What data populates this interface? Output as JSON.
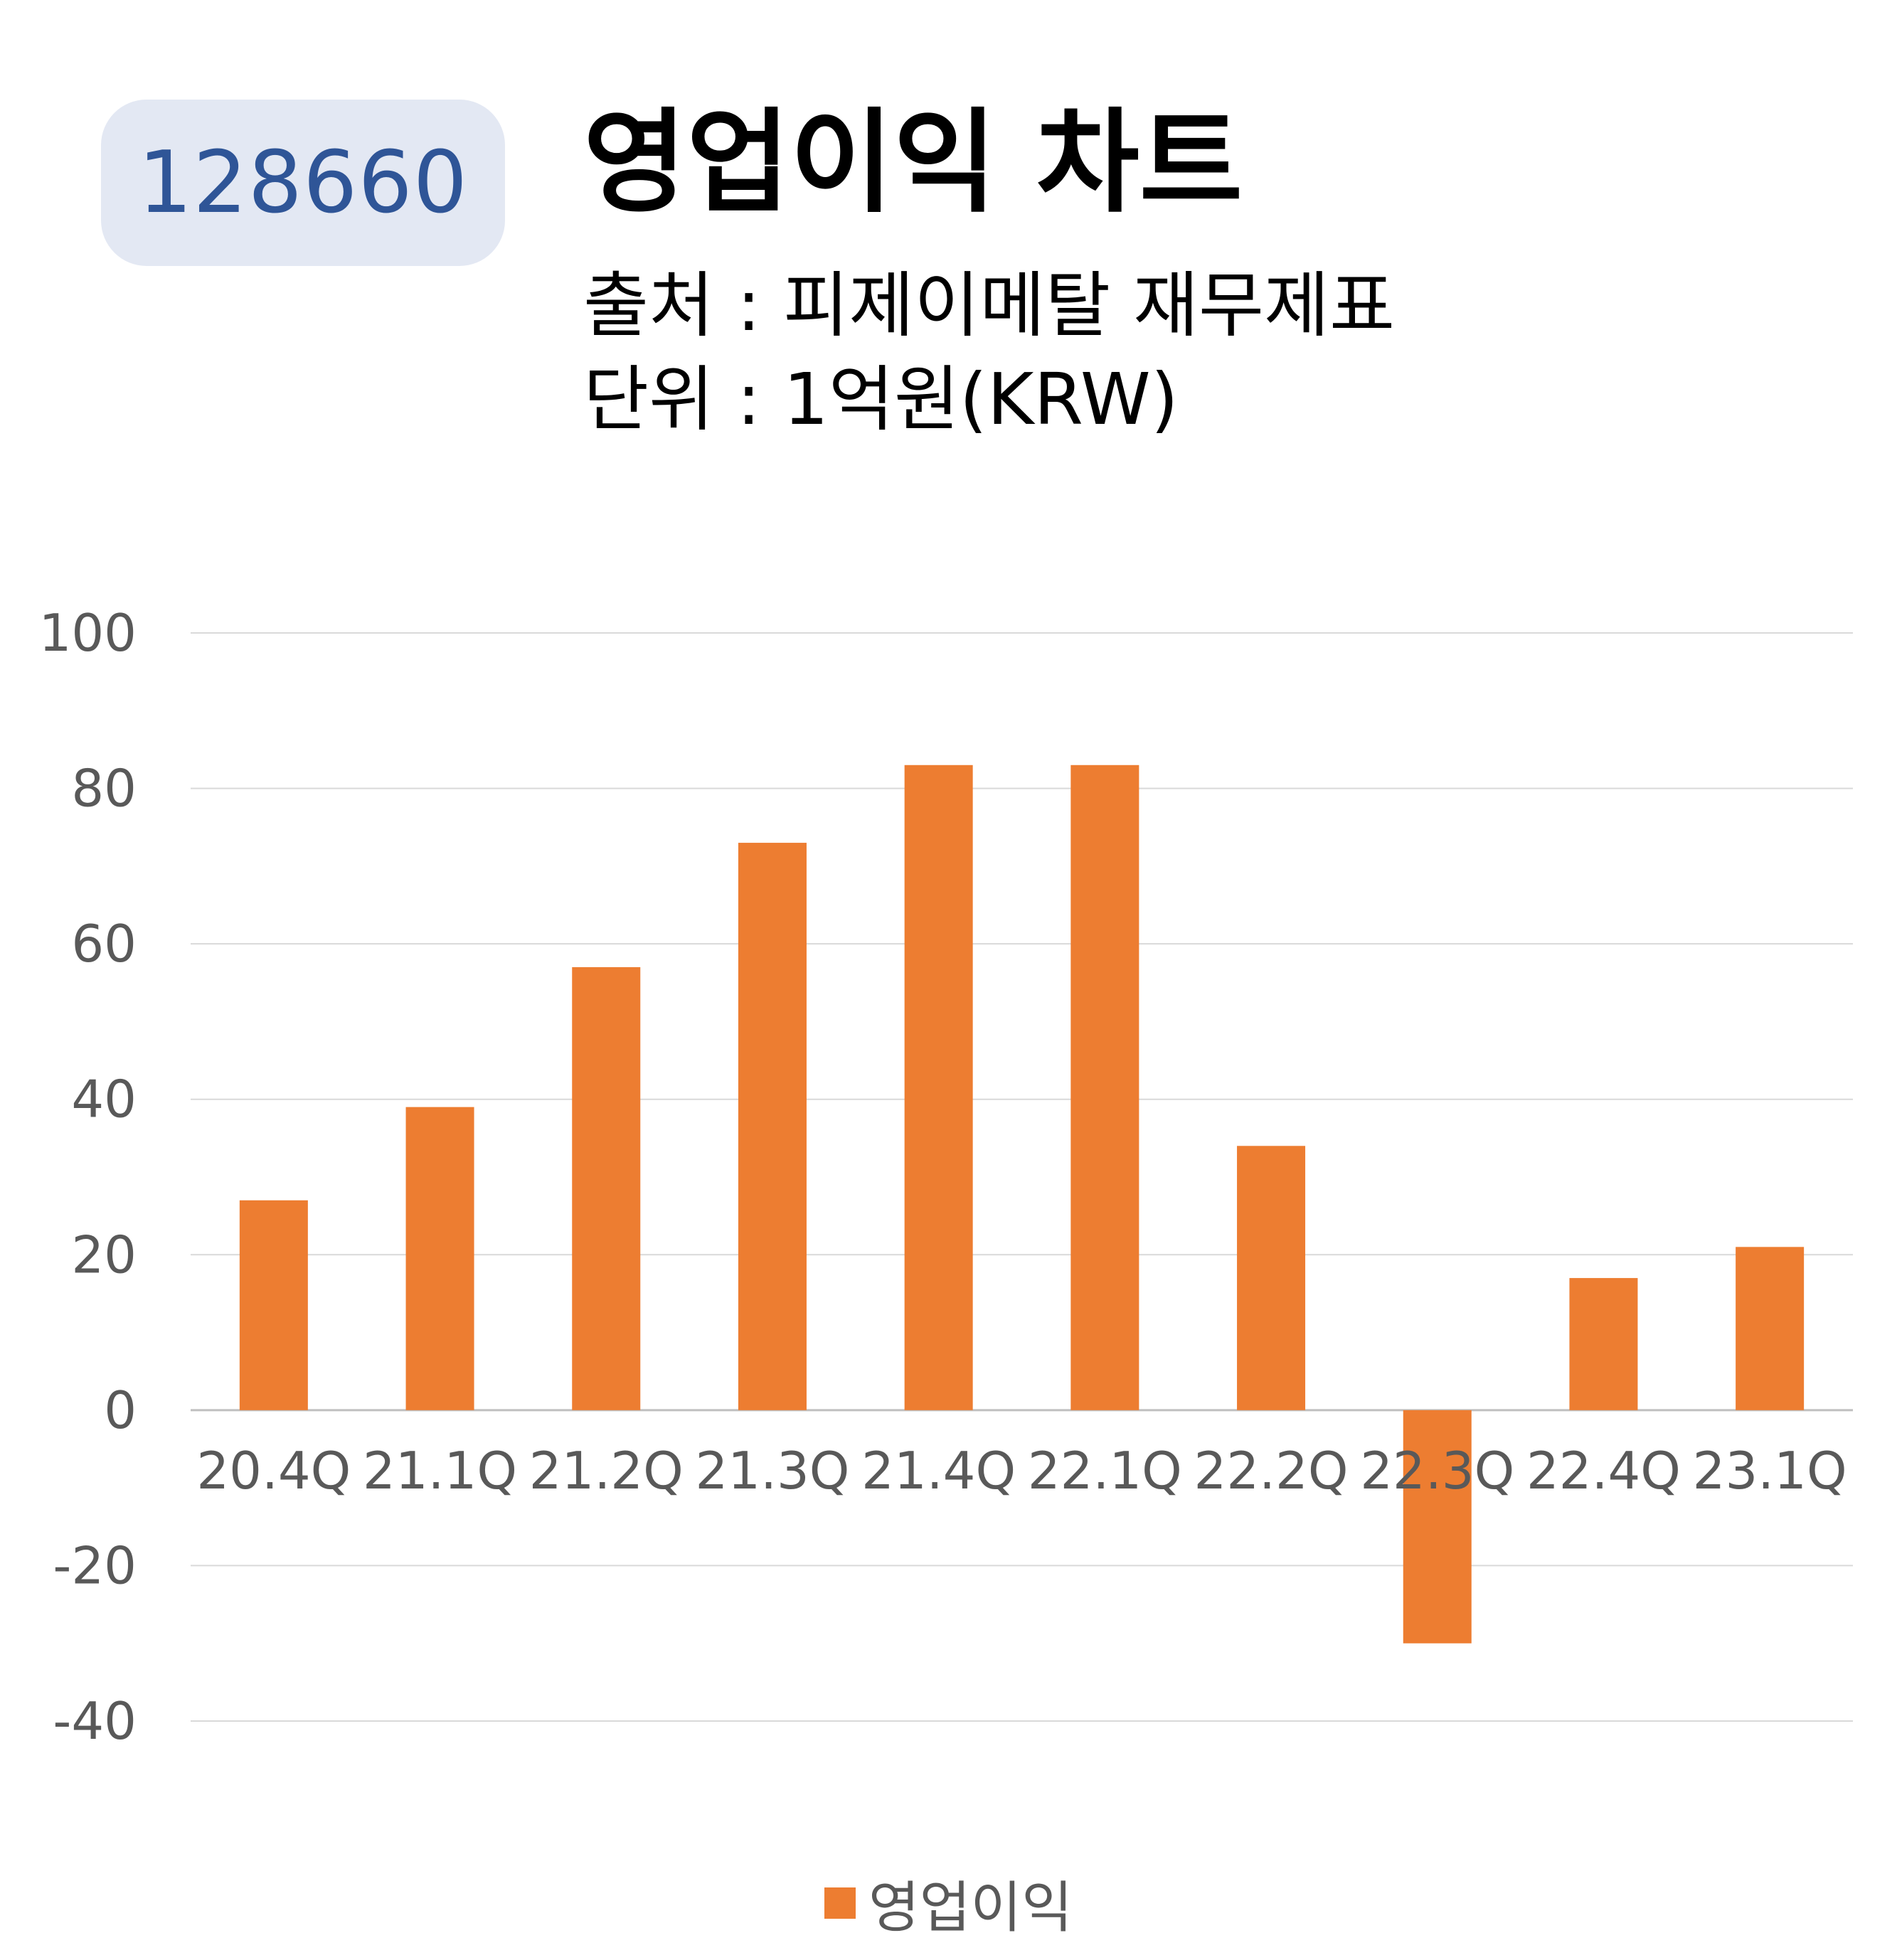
{
  "header": {
    "code": "128660",
    "title": "영업이익 차트",
    "source": "출처 : 피제이메탈 재무제표",
    "unit": "단위 : 1억원(KRW)"
  },
  "colors": {
    "bar": "#ed7d31",
    "badge_bg": "#e3e8f3",
    "badge_text": "#2f5597",
    "grid": "#d9d9d9",
    "tick_text": "#595959"
  },
  "chart_data": {
    "type": "bar",
    "categories": [
      "20.4Q",
      "21.1Q",
      "21.2Q",
      "21.3Q",
      "21.4Q",
      "22.1Q",
      "22.2Q",
      "22.3Q",
      "22.4Q",
      "23.1Q"
    ],
    "series": [
      {
        "name": "영업이익",
        "values": [
          27,
          39,
          57,
          73,
          83,
          83,
          34,
          -30,
          17,
          21
        ]
      }
    ],
    "ylim": [
      -40,
      100
    ],
    "yticks": [
      100,
      80,
      60,
      40,
      20,
      0,
      -20,
      -40
    ],
    "grid": true,
    "legend": "bottom-center",
    "xlabel": "",
    "ylabel": ""
  }
}
